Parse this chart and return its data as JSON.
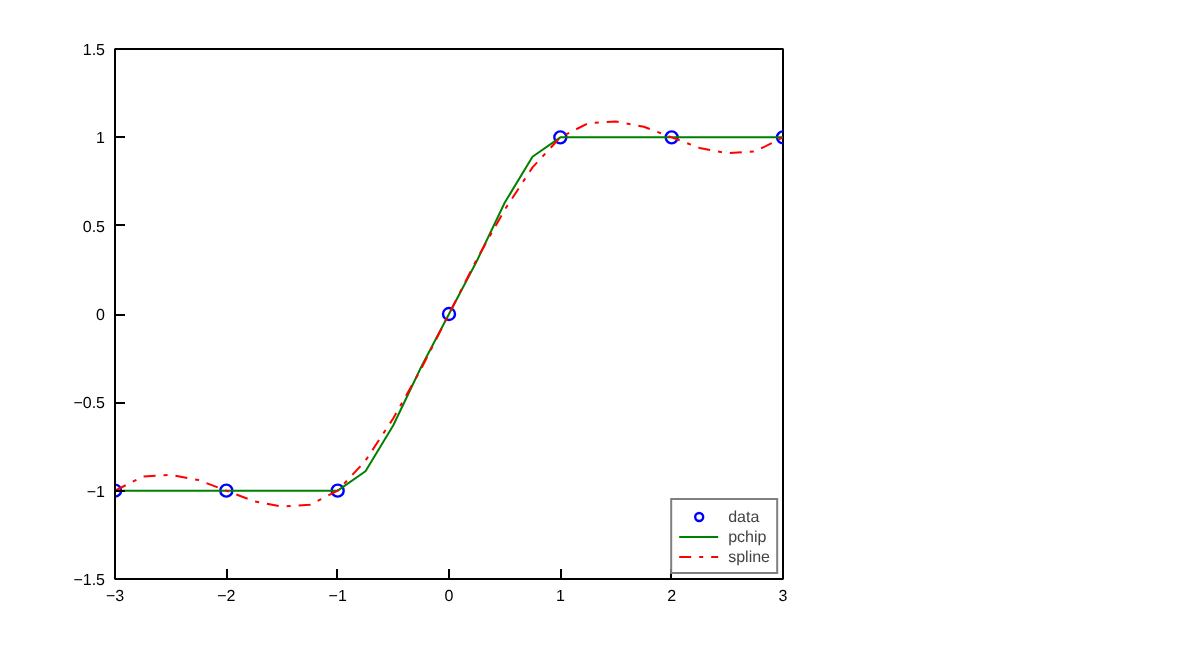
{
  "chart_data": {
    "type": "line",
    "xlim": [
      -3,
      3
    ],
    "ylim": [
      -1.5,
      1.5
    ],
    "xticks": [
      -3,
      -2,
      -1,
      0,
      1,
      2,
      3
    ],
    "yticks": [
      -1.5,
      -1,
      -0.5,
      0,
      0.5,
      1,
      1.5
    ],
    "grid": false,
    "legend": "bottom right",
    "series": [
      {
        "name": "data",
        "type": "scatter",
        "marker": "circle",
        "color": "#0000ff",
        "x": [
          -3,
          -2,
          -1,
          0,
          1,
          2,
          3
        ],
        "values": [
          -1,
          -1,
          -1,
          0,
          1,
          1,
          1
        ]
      },
      {
        "name": "pchip",
        "line_style": "solid",
        "color": "#008000",
        "x": [
          -3,
          -2,
          -1,
          -0.75,
          -0.5,
          -0.25,
          0,
          0.25,
          0.5,
          0.75,
          1,
          2,
          3
        ],
        "values": [
          -1,
          -1,
          -1,
          -0.89,
          -0.63,
          -0.3,
          0,
          0.3,
          0.63,
          0.89,
          1,
          1,
          1
        ]
      },
      {
        "name": "spline",
        "line_style": "dashdot",
        "color": "#ff0000",
        "x": [
          -3,
          -2.75,
          -2.5,
          -2.25,
          -2,
          -1.75,
          -1.5,
          -1.25,
          -1,
          -0.75,
          -0.5,
          -0.25,
          0,
          0.25,
          0.5,
          0.75,
          1,
          1.25,
          1.5,
          1.75,
          2,
          2.25,
          2.5,
          2.75,
          3
        ],
        "values": [
          -1,
          -0.92,
          -0.91,
          -0.94,
          -1,
          -1.06,
          -1.09,
          -1.08,
          -1,
          -0.83,
          -0.59,
          -0.31,
          0,
          0.31,
          0.59,
          0.83,
          1,
          1.08,
          1.09,
          1.06,
          1,
          0.94,
          0.91,
          0.92,
          1
        ]
      }
    ]
  }
}
